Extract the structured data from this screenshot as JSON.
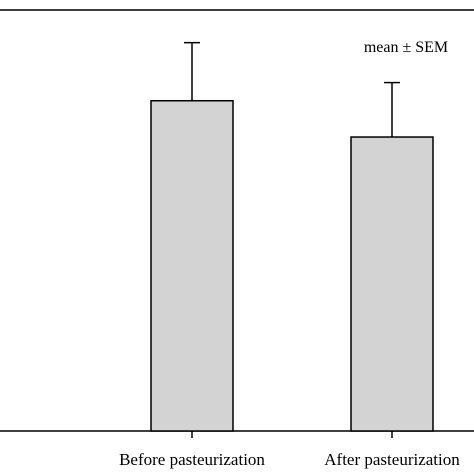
{
  "chart_data": {
    "type": "bar",
    "categories": [
      "Before pasteurization",
      "After pasteurization"
    ],
    "series": [
      {
        "values": [
          91,
          81
        ],
        "errors": [
          16,
          15
        ]
      }
    ],
    "annotation": "mean ± SEM",
    "bar_color": "#d3d3d3",
    "edge_color": "#000000",
    "ylim": [
      0,
      116
    ],
    "grid": false,
    "xlabel": "",
    "ylabel": ""
  }
}
